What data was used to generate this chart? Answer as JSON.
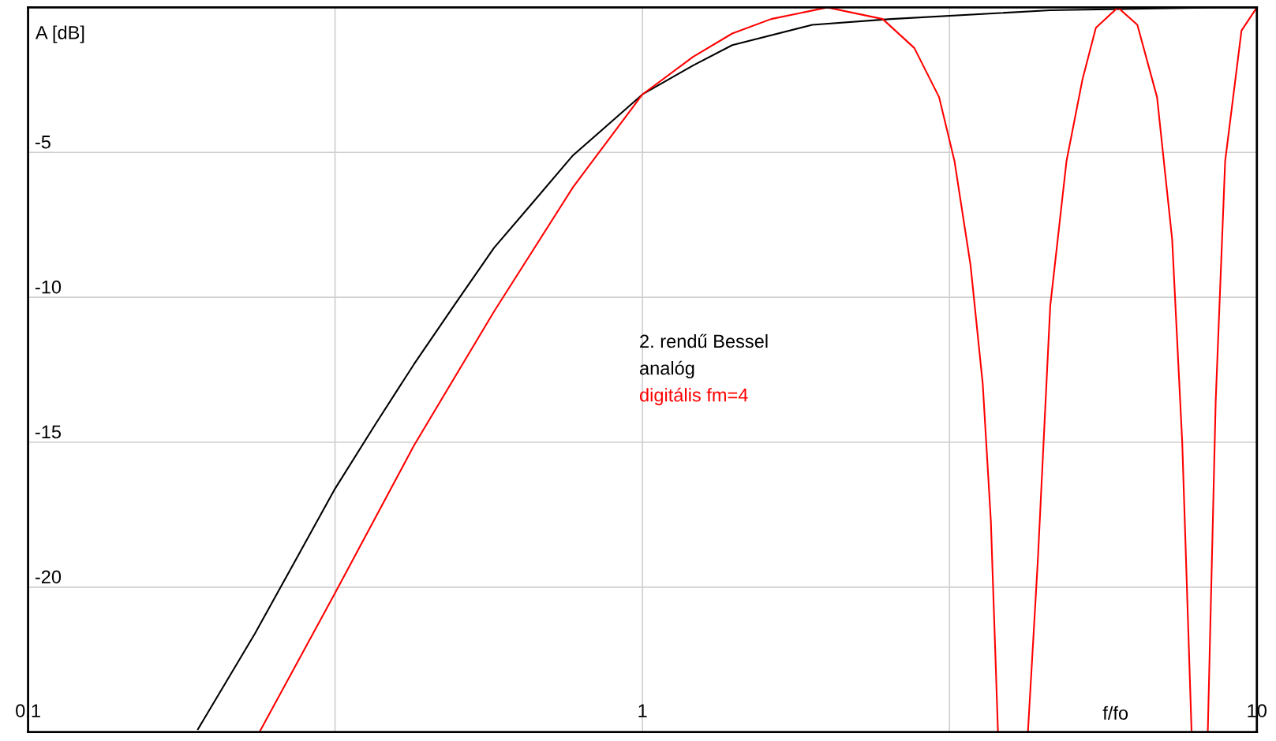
{
  "chart_data": {
    "type": "line",
    "xlabel": "f/fo",
    "ylabel": "A [dB]",
    "legend_title": "2. rendű Bessel",
    "log": "x",
    "xlim": [
      0.1,
      10
    ],
    "ylim": [
      -25,
      0
    ],
    "xticks": [
      0.1,
      {
        "value": 0.316,
        "label": null
      },
      1,
      {
        "value": 3.16,
        "label": null
      },
      10
    ],
    "yticks": [
      {
        "value": 0,
        "label": null
      },
      -5,
      -10,
      -15,
      -20,
      {
        "value": -25,
        "label": null
      }
    ],
    "grid": true,
    "legend": "center",
    "marker": "none",
    "line_style": "solid",
    "series": [
      {
        "name": "analóg",
        "color": "#000000",
        "x": [
          0.189,
          0.234,
          0.272,
          0.316,
          0.367,
          0.425,
          0.493,
          0.573,
          0.665,
          0.771,
          0.895,
          1,
          1.21,
          1.4,
          1.89,
          2.54,
          4.61,
          8.75,
          10
        ],
        "values": [
          -24.9,
          -21.6,
          -19.1,
          -16.6,
          -14.4,
          -12.3,
          -10.3,
          -8.3,
          -6.7,
          -5.1,
          -3.9,
          -3.0,
          -2.0,
          -1.3,
          -0.6,
          -0.4,
          -0.1,
          0,
          0
        ]
      },
      {
        "name": "digitális fm=4",
        "color": "#ff0000",
        "x": [
          0.238,
          0.316,
          0.425,
          0.573,
          0.771,
          1,
          1.21,
          1.4,
          1.62,
          2.0,
          2.46,
          2.77,
          3.04,
          3.22,
          3.42,
          3.58,
          3.69,
          3.79,
          4.0,
          4.24,
          4.4,
          4.61,
          4.9,
          5.2,
          5.47,
          5.94,
          6.39,
          6.88,
          7.28,
          7.56,
          7.83,
          8.0,
          8.32,
          8.57,
          8.88,
          9.44,
          10
        ],
        "values": [
          -25,
          -20.2,
          -15.1,
          -10.5,
          -6.2,
          -3.0,
          -1.7,
          -0.9,
          -0.4,
          0,
          -0.4,
          -1.4,
          -3.1,
          -5.3,
          -8.9,
          -13.0,
          -17.7,
          -25,
          null,
          -25,
          -19.1,
          -10.3,
          -5.3,
          -2.5,
          -0.7,
          0,
          -0.6,
          -3.1,
          -8.0,
          -15.0,
          -25,
          null,
          -25,
          -13.6,
          -5.3,
          -0.8,
          0
        ]
      }
    ]
  }
}
